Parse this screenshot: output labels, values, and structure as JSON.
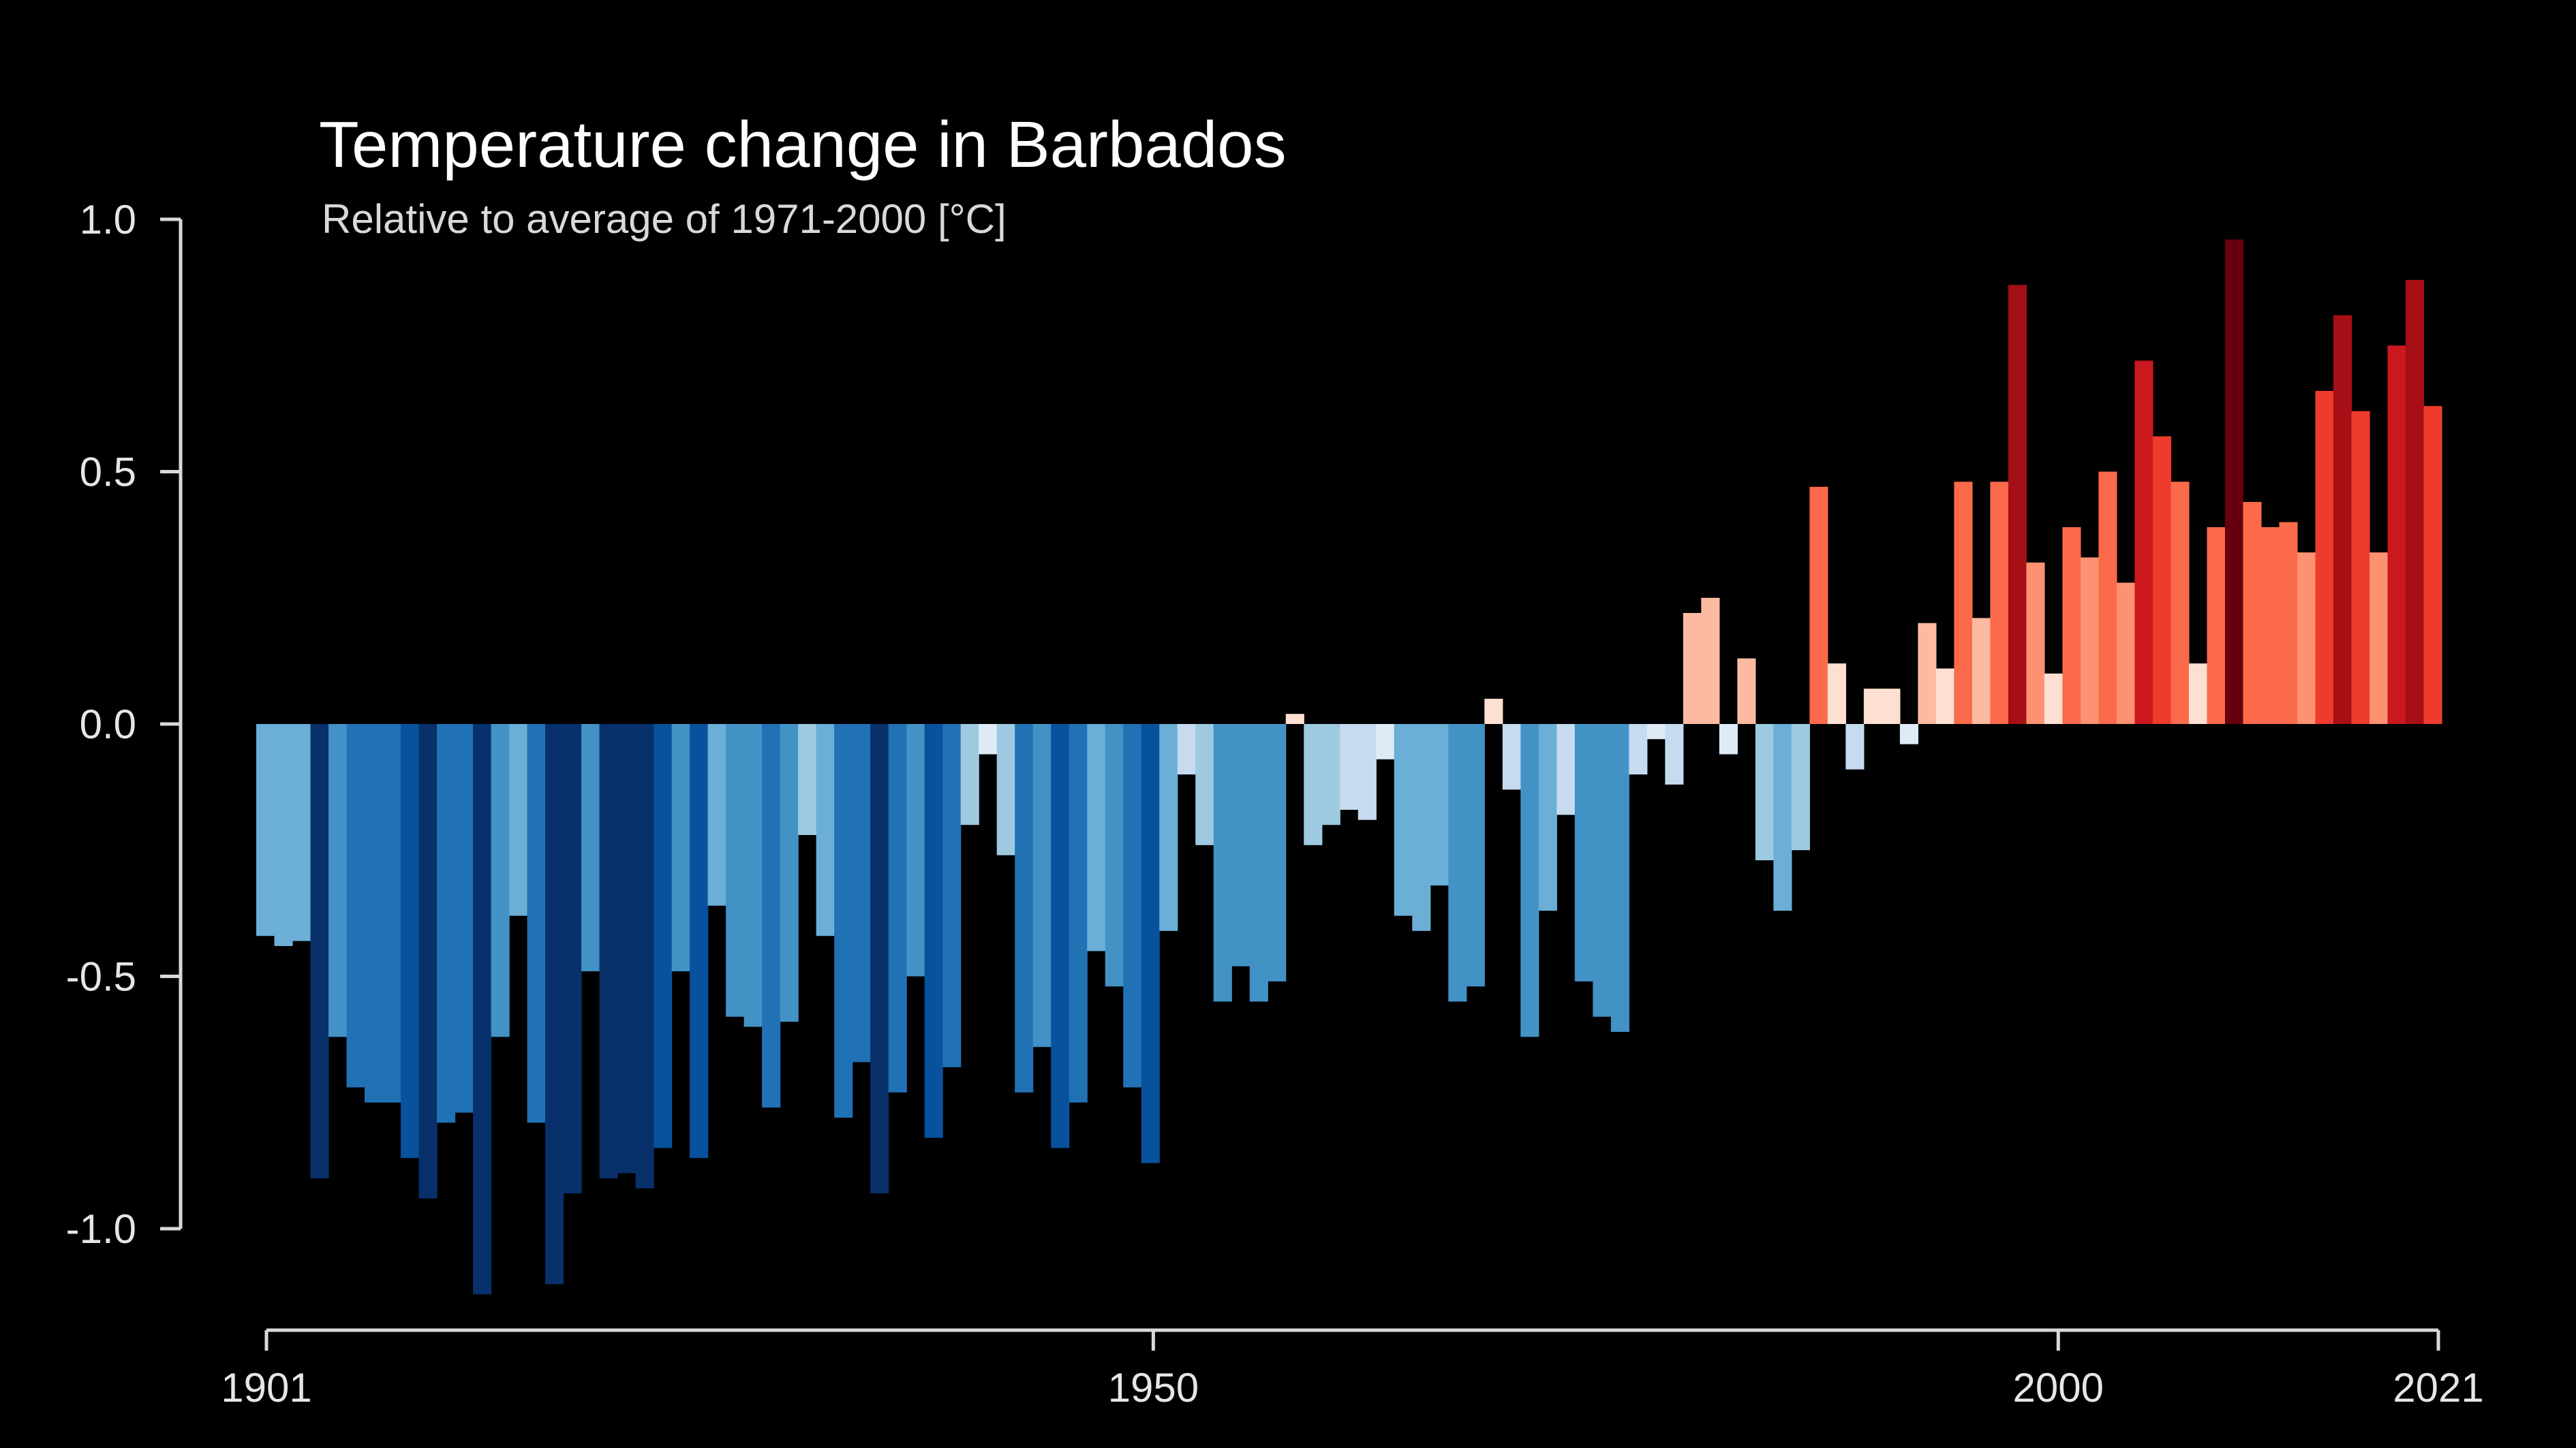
{
  "chart_data": {
    "type": "bar",
    "title": "Temperature change in Barbados",
    "subtitle": "Relative to average of 1971-2000  [°C]",
    "xlabel": "",
    "ylabel": "",
    "x_start": 1901,
    "x_end": 2021,
    "xlim": [
      1901,
      2021
    ],
    "ylim": [
      -1.0,
      1.0
    ],
    "x_ticks": [
      1901,
      1950,
      2000,
      2021
    ],
    "x_tick_labels": [
      "1901",
      "1950",
      "2000",
      "2021"
    ],
    "y_ticks": [
      1.0,
      0.5,
      0.0,
      -0.5,
      -1.0
    ],
    "y_tick_labels": [
      "1.0",
      "0.5",
      "0.0",
      "-0.5",
      "-1.0"
    ],
    "grid": false,
    "legend": "none",
    "colors": {
      "background": "#000000",
      "cold_extreme": "#08306b",
      "cold": "#2171b5",
      "cool": "#9ecae1",
      "neutral": "#f7fbff",
      "warm": "#fcbba1",
      "hot": "#fb6a4a",
      "hot_extreme": "#67000d"
    },
    "values": [
      -0.42,
      -0.44,
      -0.43,
      -0.9,
      -0.62,
      -0.72,
      -0.75,
      -0.75,
      -0.86,
      -0.94,
      -0.79,
      -0.77,
      -1.13,
      -0.62,
      -0.38,
      -0.79,
      -1.11,
      -0.93,
      -0.49,
      -0.9,
      -0.89,
      -0.92,
      -0.84,
      -0.49,
      -0.86,
      -0.36,
      -0.58,
      -0.6,
      -0.76,
      -0.59,
      -0.22,
      -0.42,
      -0.78,
      -0.67,
      -0.93,
      -0.73,
      -0.5,
      -0.82,
      -0.68,
      -0.2,
      -0.06,
      -0.26,
      -0.73,
      -0.64,
      -0.84,
      -0.75,
      -0.45,
      -0.52,
      -0.72,
      -0.87,
      -0.41,
      -0.1,
      -0.24,
      -0.55,
      -0.48,
      -0.55,
      -0.51,
      0.02,
      -0.24,
      -0.2,
      -0.17,
      -0.19,
      -0.07,
      -0.38,
      -0.41,
      -0.32,
      -0.55,
      -0.52,
      0.05,
      -0.13,
      -0.62,
      -0.37,
      -0.18,
      -0.51,
      -0.58,
      -0.61,
      -0.1,
      -0.03,
      -0.12,
      0.22,
      0.25,
      -0.06,
      0.13,
      -0.27,
      -0.37,
      -0.25,
      0.47,
      0.12,
      -0.09,
      0.07,
      0.07,
      -0.04,
      0.2,
      0.11,
      0.48,
      0.21,
      0.48,
      0.87,
      0.32,
      0.1,
      0.39,
      0.33,
      0.5,
      0.28,
      0.72,
      0.57,
      0.48,
      0.12,
      0.39,
      0.96,
      0.44,
      0.39,
      0.4,
      0.34,
      0.66,
      0.81,
      0.62,
      0.34,
      0.75,
      0.88,
      0.63
    ]
  }
}
